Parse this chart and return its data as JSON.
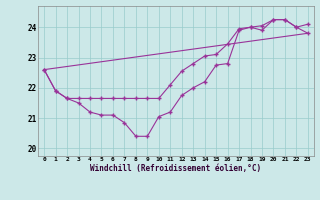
{
  "background_color": "#cce8e8",
  "grid_color": "#99cccc",
  "line_color": "#993399",
  "xlabel": "Windchill (Refroidissement éolien,°C)",
  "xlim": [
    -0.5,
    23.5
  ],
  "ylim": [
    19.75,
    24.7
  ],
  "ytick_values": [
    20,
    21,
    22,
    23,
    24
  ],
  "line1_y": [
    22.6,
    21.9,
    21.65,
    21.5,
    21.2,
    21.1,
    21.1,
    20.85,
    20.4,
    20.4,
    21.05,
    21.2,
    21.75,
    22.0,
    22.2,
    22.75,
    22.8,
    23.9,
    24.0,
    23.9,
    24.25,
    24.25,
    24.0,
    24.1
  ],
  "line2_y": [
    22.6,
    21.9,
    21.65,
    21.65,
    21.65,
    21.65,
    21.65,
    21.65,
    21.65,
    21.65,
    21.65,
    22.1,
    22.55,
    22.8,
    23.05,
    23.1,
    23.45,
    23.95,
    24.0,
    24.05,
    24.25,
    24.25,
    24.0,
    23.8
  ]
}
